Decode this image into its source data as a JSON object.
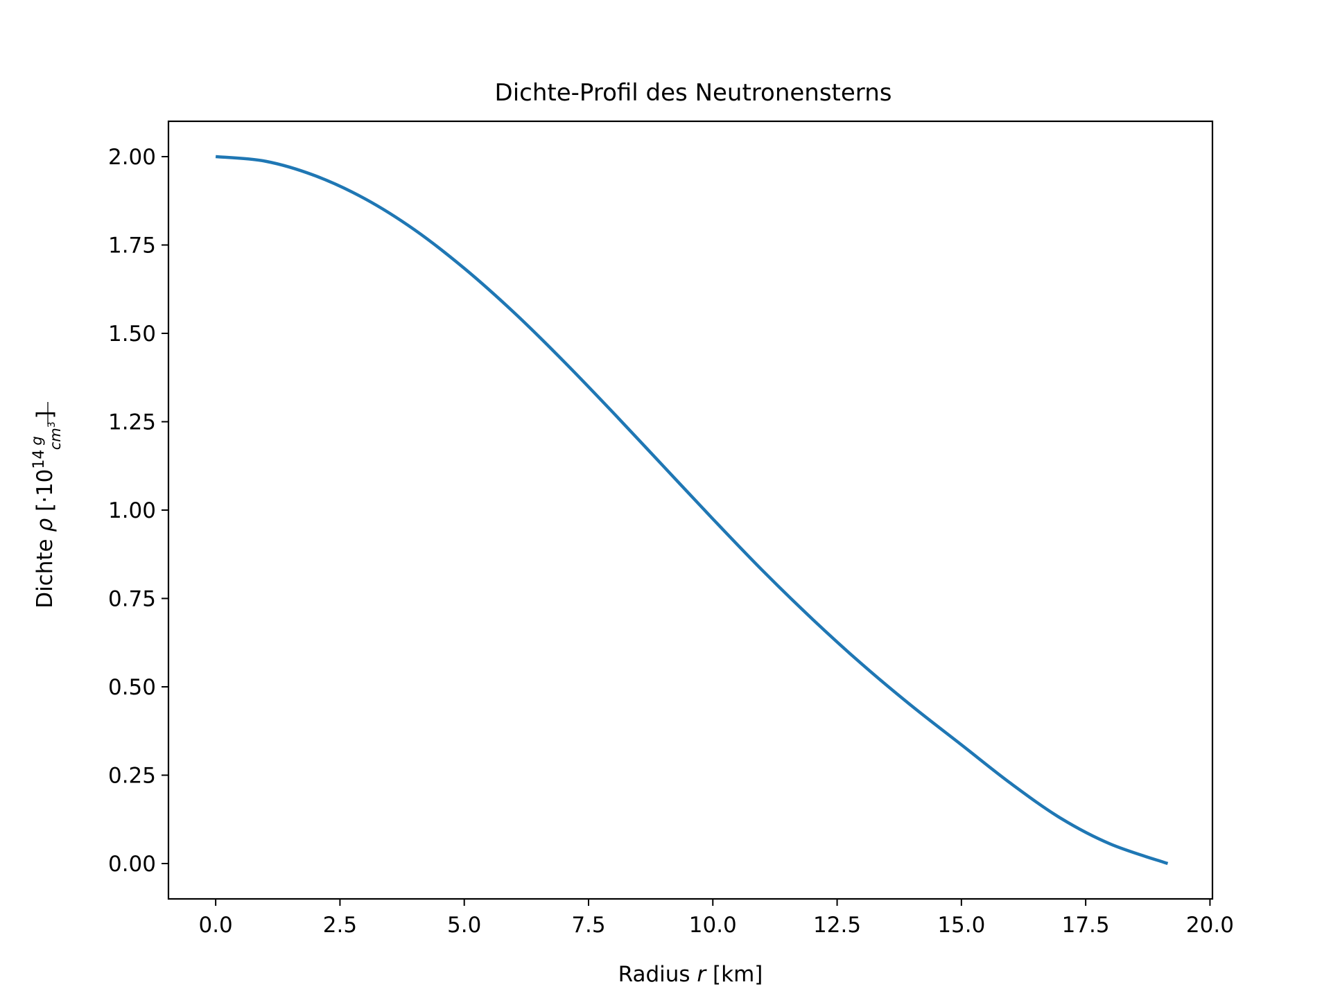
{
  "chart_data": {
    "type": "line",
    "title": "Dichte-Profil des Neutronensterns",
    "xlabel": "Radius r [km]",
    "ylabel": "Dichte ρ [·10^14 g/cm^3]",
    "xlabel_parts": {
      "pre": "Radius ",
      "var": "r",
      "post": " [km]"
    },
    "ylabel_parts": {
      "pre": "Dichte ",
      "var": "ρ",
      "open": " [·10",
      "exp": "14",
      "num": "g",
      "den": "cm",
      "den_exp": "3",
      "close": "]"
    },
    "xlim": [
      -0.95,
      20.05
    ],
    "ylim": [
      -0.1,
      2.1
    ],
    "xticks": [
      0.0,
      2.5,
      5.0,
      7.5,
      10.0,
      12.5,
      15.0,
      17.5,
      20.0
    ],
    "xtick_labels": [
      "0.0",
      "2.5",
      "5.0",
      "7.5",
      "10.0",
      "12.5",
      "15.0",
      "17.5",
      "20.0"
    ],
    "yticks": [
      0.0,
      0.25,
      0.5,
      0.75,
      1.0,
      1.25,
      1.5,
      1.75,
      2.0
    ],
    "ytick_labels": [
      "0.00",
      "0.25",
      "0.50",
      "0.75",
      "1.00",
      "1.25",
      "1.50",
      "1.75",
      "2.00"
    ],
    "grid": false,
    "legend": "none",
    "series": [
      {
        "color": "#1f77b4",
        "x": [
          0.0,
          1.0,
          2.0,
          3.0,
          4.0,
          5.0,
          6.0,
          7.0,
          8.0,
          9.0,
          10.0,
          11.0,
          12.0,
          13.0,
          14.0,
          15.0,
          16.0,
          17.0,
          18.0,
          19.15
        ],
        "y": [
          2.0,
          1.987,
          1.946,
          1.881,
          1.793,
          1.684,
          1.559,
          1.421,
          1.275,
          1.125,
          0.975,
          0.829,
          0.692,
          0.564,
          0.446,
          0.336,
          0.226,
          0.128,
          0.055,
          0.0
        ]
      }
    ]
  }
}
